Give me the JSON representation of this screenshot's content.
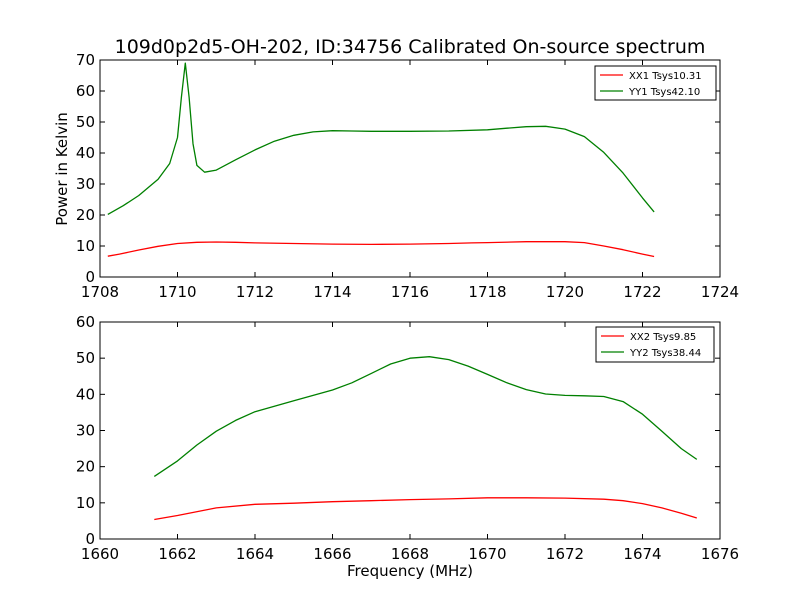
{
  "chart_data": [
    {
      "type": "line",
      "title": "109d0p2d5-OH-202, ID:34756 Calibrated On-source spectrum",
      "xlabel": "",
      "ylabel": "Power in Kelvin",
      "xlim": [
        1708,
        1724
      ],
      "ylim": [
        0,
        70
      ],
      "xticks": [
        1708,
        1710,
        1712,
        1714,
        1716,
        1718,
        1720,
        1722,
        1724
      ],
      "yticks": [
        0,
        10,
        20,
        30,
        40,
        50,
        60,
        70
      ],
      "grid": false,
      "legend_position": "top-right",
      "series": [
        {
          "name": "XX1 Tsys10.31",
          "color": "#ff0000",
          "x": [
            1708.2,
            1708.5,
            1709.0,
            1709.5,
            1710.0,
            1710.5,
            1711.0,
            1711.5,
            1712.0,
            1713.0,
            1714.0,
            1715.0,
            1716.0,
            1717.0,
            1717.6,
            1718.0,
            1719.0,
            1720.0,
            1720.5,
            1721.0,
            1721.5,
            1722.0,
            1722.3
          ],
          "y": [
            6.7,
            7.4,
            8.7,
            9.9,
            10.8,
            11.2,
            11.3,
            11.2,
            11.0,
            10.8,
            10.6,
            10.5,
            10.6,
            10.8,
            11.0,
            11.1,
            11.4,
            11.4,
            11.1,
            10.0,
            8.8,
            7.4,
            6.6
          ]
        },
        {
          "name": "YY1 Tsys42.10",
          "color": "#008000",
          "x": [
            1708.2,
            1708.6,
            1709.0,
            1709.5,
            1709.8,
            1710.0,
            1710.1,
            1710.2,
            1710.3,
            1710.4,
            1710.5,
            1710.7,
            1711.0,
            1711.5,
            1712.0,
            1712.5,
            1713.0,
            1713.5,
            1714.0,
            1714.5,
            1715.0,
            1716.0,
            1717.0,
            1718.0,
            1718.5,
            1719.0,
            1719.5,
            1720.0,
            1720.5,
            1721.0,
            1721.5,
            1722.0,
            1722.3
          ],
          "y": [
            20.2,
            23.0,
            26.3,
            31.5,
            36.6,
            45.0,
            58.0,
            69.0,
            58.0,
            43.0,
            36.0,
            33.8,
            34.5,
            37.8,
            41.0,
            43.8,
            45.7,
            46.8,
            47.2,
            47.1,
            47.0,
            47.0,
            47.1,
            47.5,
            48.0,
            48.5,
            48.6,
            47.7,
            45.3,
            40.2,
            33.5,
            25.5,
            21.0
          ]
        }
      ]
    },
    {
      "type": "line",
      "title": "",
      "xlabel": "Frequency (MHz)",
      "ylabel": "",
      "xlim": [
        1660,
        1676
      ],
      "ylim": [
        0,
        60
      ],
      "xticks": [
        1660,
        1662,
        1664,
        1666,
        1668,
        1670,
        1672,
        1674,
        1676
      ],
      "yticks": [
        0,
        10,
        20,
        30,
        40,
        50,
        60
      ],
      "grid": false,
      "legend_position": "top-right",
      "series": [
        {
          "name": "XX2 Tsys9.85",
          "color": "#ff0000",
          "x": [
            1661.4,
            1662.0,
            1663.0,
            1664.0,
            1665.0,
            1666.0,
            1667.0,
            1668.0,
            1669.0,
            1670.0,
            1671.0,
            1672.0,
            1673.0,
            1673.5,
            1674.0,
            1674.5,
            1675.0,
            1675.4
          ],
          "y": [
            5.4,
            6.5,
            8.6,
            9.6,
            9.9,
            10.3,
            10.6,
            10.9,
            11.1,
            11.4,
            11.4,
            11.3,
            11.0,
            10.6,
            9.8,
            8.6,
            7.1,
            5.8
          ]
        },
        {
          "name": "YY2 Tsys38.44",
          "color": "#008000",
          "x": [
            1661.4,
            1662.0,
            1662.5,
            1663.0,
            1663.5,
            1664.0,
            1665.0,
            1666.0,
            1666.5,
            1667.0,
            1667.5,
            1668.0,
            1668.5,
            1669.0,
            1669.5,
            1670.0,
            1670.5,
            1671.0,
            1671.5,
            1672.0,
            1672.5,
            1673.0,
            1673.5,
            1674.0,
            1674.5,
            1675.0,
            1675.4
          ],
          "y": [
            17.3,
            21.6,
            26.0,
            29.8,
            32.8,
            35.2,
            38.2,
            41.2,
            43.2,
            45.8,
            48.4,
            50.0,
            50.4,
            49.6,
            47.8,
            45.5,
            43.2,
            41.3,
            40.1,
            39.7,
            39.6,
            39.4,
            38.0,
            34.5,
            29.8,
            25.0,
            22.0
          ]
        }
      ]
    }
  ]
}
